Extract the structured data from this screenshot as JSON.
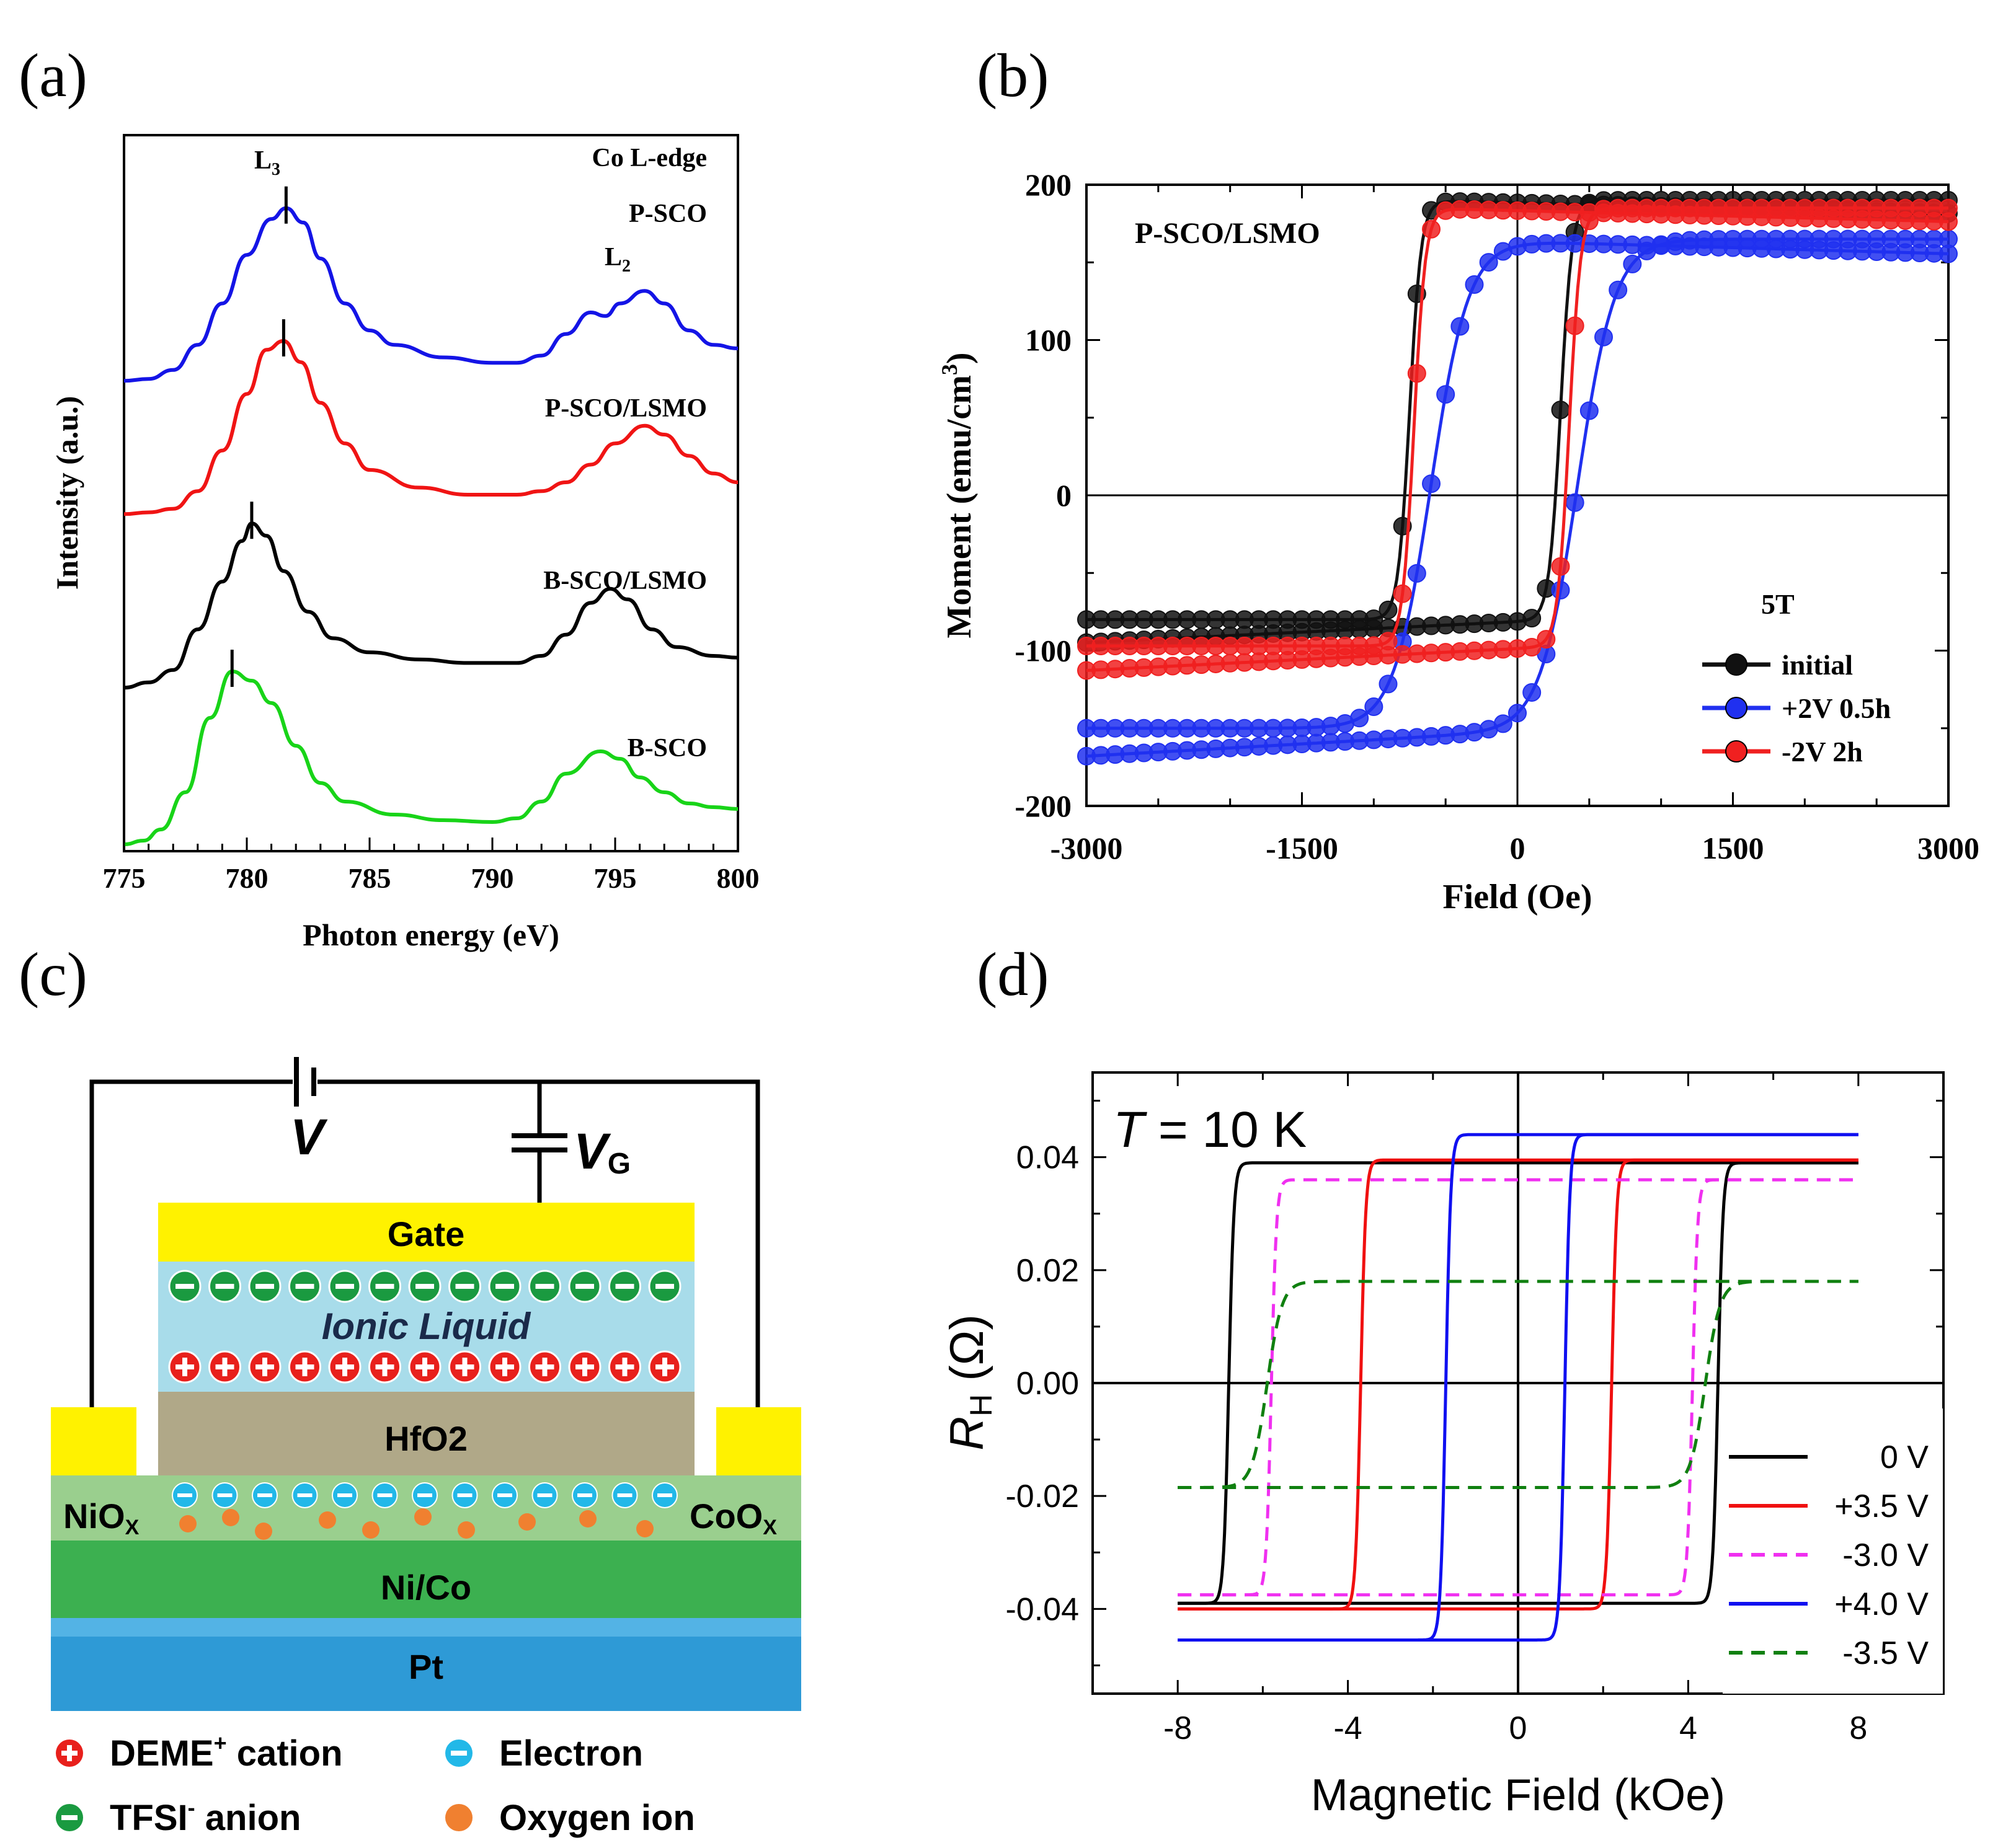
{
  "panels": {
    "a": {
      "letter": "(a)"
    },
    "b": {
      "letter": "(b)"
    },
    "c": {
      "letter": "(c)"
    },
    "d": {
      "letter": "(d)"
    }
  },
  "chart_data": [
    {
      "id": "a",
      "type": "line",
      "xlabel": "Photon energy (eV)",
      "ylabel": "Intensity (a.u.)",
      "xlim": [
        775,
        800
      ],
      "xticks": [
        "775",
        "780",
        "785",
        "790",
        "795",
        "800"
      ],
      "annotation_edge": "Co L-edge",
      "peak_labels": {
        "L3": {
          "main": "L",
          "sub": "3"
        },
        "L2": {
          "main": "L",
          "sub": "2"
        }
      },
      "series": [
        {
          "name": "P-SCO",
          "color": "#1414e6",
          "offset": 3,
          "L3_peak_eV": 781.6,
          "L2_peak_eV": 796.2,
          "points": [
            [
              775,
              0.02
            ],
            [
              776,
              0.03
            ],
            [
              777,
              0.08
            ],
            [
              778,
              0.22
            ],
            [
              779,
              0.45
            ],
            [
              780,
              0.72
            ],
            [
              781,
              0.92
            ],
            [
              781.6,
              0.98
            ],
            [
              782.3,
              0.9
            ],
            [
              783,
              0.7
            ],
            [
              784,
              0.45
            ],
            [
              785,
              0.3
            ],
            [
              786,
              0.22
            ],
            [
              788,
              0.15
            ],
            [
              790,
              0.12
            ],
            [
              791,
              0.12
            ],
            [
              792,
              0.16
            ],
            [
              793,
              0.28
            ],
            [
              794,
              0.4
            ],
            [
              794.6,
              0.38
            ],
            [
              795.2,
              0.45
            ],
            [
              796.2,
              0.52
            ],
            [
              797,
              0.45
            ],
            [
              798,
              0.3
            ],
            [
              799,
              0.22
            ],
            [
              800,
              0.2
            ]
          ]
        },
        {
          "name": "P-SCO/LSMO",
          "color": "#f01414",
          "offset": 2,
          "L3_peak_eV": 781.5,
          "L2_peak_eV": 796.2,
          "points": [
            [
              775,
              0.02
            ],
            [
              776,
              0.03
            ],
            [
              777,
              0.05
            ],
            [
              778,
              0.15
            ],
            [
              779,
              0.38
            ],
            [
              780,
              0.7
            ],
            [
              780.8,
              0.95
            ],
            [
              781.5,
              1.0
            ],
            [
              782.2,
              0.88
            ],
            [
              783,
              0.65
            ],
            [
              784,
              0.42
            ],
            [
              785,
              0.27
            ],
            [
              787,
              0.17
            ],
            [
              789,
              0.13
            ],
            [
              791,
              0.13
            ],
            [
              792,
              0.15
            ],
            [
              793,
              0.2
            ],
            [
              794,
              0.3
            ],
            [
              795,
              0.42
            ],
            [
              796.2,
              0.52
            ],
            [
              797,
              0.47
            ],
            [
              798,
              0.35
            ],
            [
              799,
              0.25
            ],
            [
              800,
              0.2
            ]
          ]
        },
        {
          "name": "B-SCO/LSMO",
          "color": "#000000",
          "offset": 1,
          "L3_peak_eV": 780.2,
          "L2_peak_eV": 794.8,
          "points": [
            [
              775,
              0.02
            ],
            [
              776,
              0.05
            ],
            [
              777,
              0.12
            ],
            [
              778,
              0.35
            ],
            [
              779,
              0.62
            ],
            [
              779.8,
              0.85
            ],
            [
              780.2,
              0.95
            ],
            [
              780.8,
              0.88
            ],
            [
              781.5,
              0.68
            ],
            [
              782.5,
              0.45
            ],
            [
              783.5,
              0.3
            ],
            [
              785,
              0.22
            ],
            [
              787,
              0.18
            ],
            [
              789,
              0.16
            ],
            [
              791,
              0.16
            ],
            [
              792,
              0.2
            ],
            [
              793,
              0.32
            ],
            [
              794,
              0.5
            ],
            [
              794.8,
              0.58
            ],
            [
              795.5,
              0.52
            ],
            [
              796.5,
              0.35
            ],
            [
              797.5,
              0.25
            ],
            [
              799,
              0.2
            ],
            [
              800,
              0.19
            ]
          ]
        },
        {
          "name": "B-SCO",
          "color": "#18d418",
          "offset": 0,
          "L3_peak_eV": 779.4,
          "L2_peak_eV": 794.4,
          "points": [
            [
              775,
              0.02
            ],
            [
              775.8,
              0.04
            ],
            [
              776.5,
              0.1
            ],
            [
              777.5,
              0.3
            ],
            [
              778.5,
              0.7
            ],
            [
              779.4,
              0.95
            ],
            [
              780.2,
              0.9
            ],
            [
              781,
              0.78
            ],
            [
              782,
              0.55
            ],
            [
              783,
              0.35
            ],
            [
              784,
              0.25
            ],
            [
              786,
              0.18
            ],
            [
              788,
              0.15
            ],
            [
              790,
              0.14
            ],
            [
              791,
              0.16
            ],
            [
              792,
              0.25
            ],
            [
              793,
              0.4
            ],
            [
              794.4,
              0.52
            ],
            [
              795.2,
              0.48
            ],
            [
              796,
              0.38
            ],
            [
              797,
              0.3
            ],
            [
              798,
              0.24
            ],
            [
              799,
              0.22
            ],
            [
              800,
              0.21
            ]
          ]
        }
      ]
    },
    {
      "id": "b",
      "type": "scatter",
      "xlabel": "Field (Oe)",
      "ylabel": {
        "main": "Moment (emu/cm",
        "sup": "3",
        "close": ")"
      },
      "xlim": [
        -3000,
        3000
      ],
      "ylim": [
        -200,
        200
      ],
      "xticks": [
        "-3000",
        "-1500",
        "0",
        "1500",
        "3000"
      ],
      "yticks": [
        "200",
        "100",
        "0",
        "-100",
        "-200"
      ],
      "sample_label": "P-SCO/LSMO",
      "legend_title": "5T",
      "legend_position": "bottom-right",
      "series": [
        {
          "name": "initial",
          "color": "#111111",
          "Ms_pos": 190,
          "Ms_neg": -80,
          "Hc_down": -750,
          "Hc_up": 300
        },
        {
          "name": "+2V 0.5h",
          "color": "#2030f0",
          "Ms_pos": 165,
          "Ms_neg": -150,
          "Hc_down": -600,
          "Hc_up": 420
        },
        {
          "name": "-2V  2h",
          "color": "#f02020",
          "Ms_pos": 185,
          "Ms_neg": -97,
          "Hc_down": -720,
          "Hc_up": 360
        }
      ]
    },
    {
      "id": "c",
      "type": "diagram",
      "labels": {
        "voltage": "V",
        "gate_voltage_main": "V",
        "gate_voltage_sub": "G",
        "gate": "Gate",
        "ionic_liquid": "Ionic Liquid",
        "oxide_main": "HfO",
        "oxide_sub": "2",
        "left_main": "NiO",
        "left_sub": "X",
        "right_main": "CoO",
        "right_sub": "X",
        "layer": "Ni/Co",
        "substrate": "Pt"
      },
      "legend": [
        {
          "symbol": "plus",
          "color": "#e8201c",
          "text": "DEME",
          "sup": "+",
          "rest": " cation"
        },
        {
          "symbol": "minus",
          "color": "#22b8e8",
          "text": "Electron",
          "sup": "",
          "rest": ""
        },
        {
          "symbol": "minus",
          "color": "#1a9a40",
          "text": "TFSI",
          "sup": "-",
          "rest": " anion"
        },
        {
          "symbol": "dot",
          "color": "#f08030",
          "text": "Oxygen ion",
          "sup": "",
          "rest": ""
        }
      ],
      "colors": {
        "gate": "#fff200",
        "ionic": "#a8dcea",
        "hfo2": "#b0a888",
        "oxide_layer": "#9acf8e",
        "nico": "#3cb050",
        "pt": "#2e9ad6"
      }
    },
    {
      "id": "d",
      "type": "line",
      "xlabel": "Magnetic Field (kOe)",
      "ylabel": {
        "main": "R",
        "sub": "H",
        "unit": " (Ω)"
      },
      "xlim": [
        -10,
        10
      ],
      "ylim": [
        -0.055,
        0.055
      ],
      "xticks": [
        "-8",
        "-4",
        "0",
        "4",
        "8"
      ],
      "yticks": [
        "0.04",
        "0.02",
        "0.00",
        "-0.02",
        "-0.04"
      ],
      "temperature": {
        "var": "T",
        "rest": " = 10 K"
      },
      "series": [
        {
          "name": "0 V",
          "color": "#000000",
          "dash": "solid",
          "Ms_top": 0.039,
          "Ms_bot": -0.039,
          "Hc_down": -6.8,
          "Hc_up": 4.7
        },
        {
          "name": "+3.5 V",
          "color": "#f01010",
          "dash": "solid",
          "Ms_top": 0.0395,
          "Ms_bot": -0.04,
          "Hc_down": -3.7,
          "Hc_up": 2.2
        },
        {
          "name": "-3.0 V",
          "color": "#f030f0",
          "dash": "dashed",
          "Ms_top": 0.036,
          "Ms_bot": -0.0375,
          "Hc_down": -5.8,
          "Hc_up": 4.1
        },
        {
          "name": "+4.0 V",
          "color": "#1010f0",
          "dash": "solid",
          "Ms_top": 0.044,
          "Ms_bot": -0.0455,
          "Hc_down": -1.7,
          "Hc_up": 1.1
        },
        {
          "name": "-3.5 V",
          "color": "#108010",
          "dash": "dashed",
          "Ms_top": 0.018,
          "Ms_bot": -0.0185,
          "Hc_down": -5.9,
          "Hc_up": 4.4
        }
      ]
    }
  ]
}
